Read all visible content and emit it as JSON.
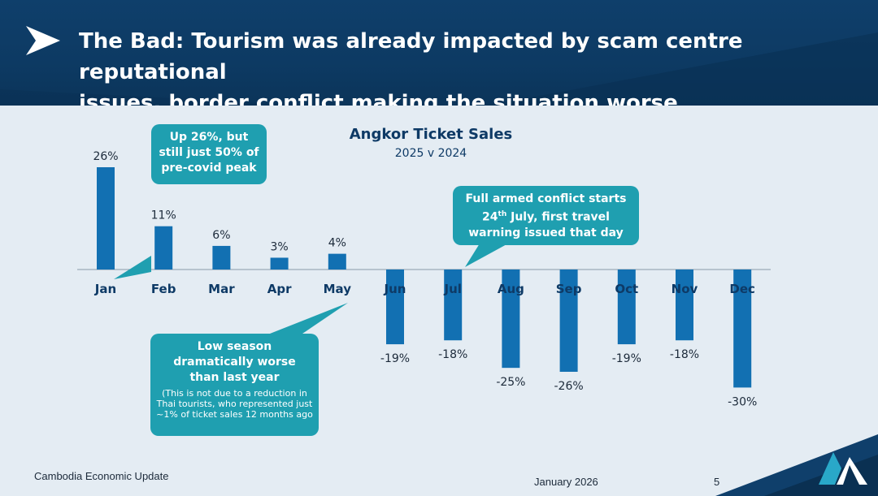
{
  "header": {
    "title_line1": "The Bad: Tourism was already impacted by scam centre reputational",
    "title_line2": "issues, border conflict making the situation worse"
  },
  "chart_data": {
    "type": "bar",
    "title": "Angkor Ticket Sales",
    "subtitle": "2025 v 2024",
    "categories": [
      "Jan",
      "Feb",
      "Mar",
      "Apr",
      "May",
      "Jun",
      "Jul",
      "Aug",
      "Sep",
      "Oct",
      "Nov",
      "Dec"
    ],
    "values": [
      26,
      11,
      6,
      3,
      4,
      -19,
      -18,
      -25,
      -26,
      -19,
      -18,
      -30
    ],
    "value_labels": [
      "26%",
      "11%",
      "6%",
      "3%",
      "4%",
      "-19%",
      "-18%",
      "-25%",
      "-26%",
      "-19%",
      "-18%",
      "-30%"
    ],
    "ylim": [
      -30,
      26
    ],
    "xlabel": "",
    "ylabel": "",
    "bar_color": "#1270b2"
  },
  "callouts": {
    "c1": [
      "Up 26%, but",
      "still just 50% of",
      "pre-covid peak"
    ],
    "c2_line1": "Full armed conflict starts",
    "c2_line2_num": "24",
    "c2_line2_sup": "th",
    "c2_line2_rest": " July, first travel",
    "c2_line3": "warning issued that day",
    "c3_main": [
      "Low season",
      "dramatically worse",
      "than last year"
    ],
    "c3_note": "(This is not due to a reduction in Thai tourists, who represented just ~1% of ticket sales 12 months ago"
  },
  "footer": {
    "left": "Cambodia Economic Update",
    "date": "January 2026",
    "page": "5"
  },
  "colors": {
    "header": "#0f3f6b",
    "callout": "#1f9fb0",
    "bar": "#1270b2",
    "axis_label": "#0e3a66",
    "background": "#e4ecf3"
  }
}
